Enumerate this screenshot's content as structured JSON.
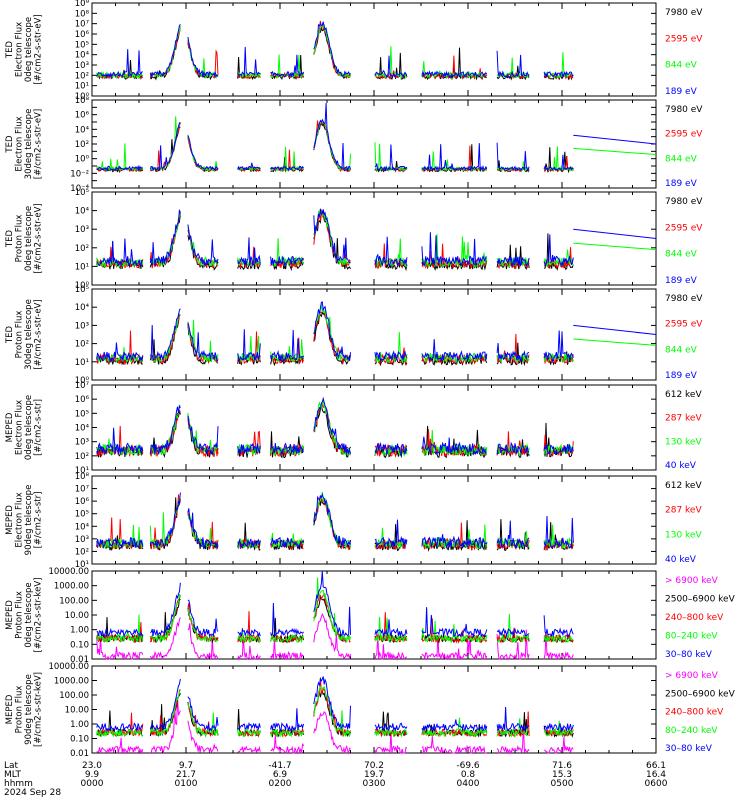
{
  "colors": {
    "black": "#000000",
    "blue": "#0000ff",
    "red": "#ff0000",
    "green": "#00ff00",
    "magenta": "#ff00ff",
    "axis": "#000000",
    "background": "#ffffff"
  },
  "footer": {
    "row_labels": [
      "Lat",
      "MLT",
      "hhmm"
    ],
    "date": "2024 Sep 28",
    "ticks": [
      {
        "lat": "23.0",
        "mlt": "9.9",
        "hhmm": "0000"
      },
      {
        "lat": "9.7",
        "mlt": "21.7",
        "hhmm": "0100"
      },
      {
        "lat": "-41.7",
        "mlt": "6.9",
        "hhmm": "0200"
      },
      {
        "lat": "70.2",
        "mlt": "19.7",
        "hhmm": "0300"
      },
      {
        "lat": "-69.6",
        "mlt": "0.8",
        "hhmm": "0400"
      },
      {
        "lat": "71.6",
        "mlt": "15.3",
        "hhmm": "0500"
      },
      {
        "lat": "66.1",
        "mlt": "16.4",
        "hhmm": "0600"
      }
    ]
  },
  "chart_data": [
    {
      "type": "line",
      "ylabel_lines": [
        "TED",
        "Electron Flux",
        "0deg telescope",
        "[#/cm2-s-str-eV]"
      ],
      "yscale": "log",
      "ylim_exp": [
        0,
        9
      ],
      "ytick_labels": [
        "10⁰",
        "10¹",
        "10²",
        "10³",
        "10⁴",
        "10⁵",
        "10⁶",
        "10⁷",
        "10⁸",
        "10⁹"
      ],
      "ytick_label_exps": [
        1,
        3,
        5,
        7,
        9
      ],
      "legend": [
        {
          "label": "7980 eV",
          "color": "black"
        },
        {
          "label": "2595 eV",
          "color": "red"
        },
        {
          "label": "844 eV",
          "color": "green"
        },
        {
          "label": "189 eV",
          "color": "blue"
        }
      ]
    },
    {
      "type": "line",
      "ylabel_lines": [
        "TED",
        "Electron Flux",
        "30deg telescope",
        "[#/cm2-s-str-eV]"
      ],
      "yscale": "log",
      "ylim_exp": [
        -4,
        8
      ],
      "ytick_labels": [
        "10⁻⁴",
        "10⁻²",
        "10⁰",
        "10²",
        "10⁴",
        "10⁶",
        "10⁸"
      ],
      "ytick_label_exps": [
        -4,
        -2,
        0,
        2,
        4,
        6,
        8
      ],
      "legend": [
        {
          "label": "7980 eV",
          "color": "black"
        },
        {
          "label": "2595 eV",
          "color": "red"
        },
        {
          "label": "844 eV",
          "color": "green"
        },
        {
          "label": "189 eV",
          "color": "blue"
        }
      ]
    },
    {
      "type": "line",
      "ylabel_lines": [
        "TED",
        "Proton Flux",
        "0deg telescope",
        "[#/cm2-s-str-eV]"
      ],
      "yscale": "log",
      "ylim_exp": [
        0,
        5
      ],
      "ytick_labels": [
        "10⁰",
        "10¹",
        "10²",
        "10³",
        "10⁴",
        "10⁵"
      ],
      "ytick_label_exps": [
        0,
        1,
        2,
        3,
        4,
        5
      ],
      "legend": [
        {
          "label": "7980 eV",
          "color": "black"
        },
        {
          "label": "2595 eV",
          "color": "red"
        },
        {
          "label": "844 eV",
          "color": "green"
        },
        {
          "label": "189 eV",
          "color": "blue"
        }
      ]
    },
    {
      "type": "line",
      "ylabel_lines": [
        "TED",
        "Proton Flux",
        "30deg telescope",
        "[#/cm2-s-str-eV]"
      ],
      "yscale": "log",
      "ylim_exp": [
        0,
        5
      ],
      "ytick_labels": [
        "10⁰",
        "10¹",
        "10²",
        "10³",
        "10⁴",
        "10⁵"
      ],
      "ytick_label_exps": [
        0,
        1,
        2,
        3,
        4,
        5
      ],
      "legend": [
        {
          "label": "7980 eV",
          "color": "black"
        },
        {
          "label": "2595 eV",
          "color": "red"
        },
        {
          "label": "844 eV",
          "color": "green"
        },
        {
          "label": "189 eV",
          "color": "blue"
        }
      ]
    },
    {
      "type": "line",
      "ylabel_lines": [
        "MEPED",
        "Electron Flux",
        "0deg telescope",
        "[#/cm2-s-str]"
      ],
      "yscale": "log",
      "ylim_exp": [
        1,
        7
      ],
      "ytick_labels": [
        "10¹",
        "10²",
        "10³",
        "10⁴",
        "10⁵",
        "10⁶",
        "10⁷"
      ],
      "ytick_label_exps": [
        2,
        4,
        6
      ],
      "legend": [
        {
          "label": "612 keV",
          "color": "black"
        },
        {
          "label": "287 keV",
          "color": "red"
        },
        {
          "label": "130 keV",
          "color": "green"
        },
        {
          "label": "40 keV",
          "color": "blue"
        }
      ]
    },
    {
      "type": "line",
      "ylabel_lines": [
        "MEPED",
        "Electron Flux",
        "90deg telescope",
        "[#/cm2-s-str]"
      ],
      "yscale": "log",
      "ylim_exp": [
        1,
        8
      ],
      "ytick_labels": [
        "10¹",
        "10²",
        "10³",
        "10⁴",
        "10⁵",
        "10⁶",
        "10⁷",
        "10⁸"
      ],
      "ytick_label_exps": [
        1,
        2,
        4,
        6,
        8
      ],
      "legend": [
        {
          "label": "612 keV",
          "color": "black"
        },
        {
          "label": "287 keV",
          "color": "red"
        },
        {
          "label": "130 keV",
          "color": "green"
        },
        {
          "label": "40 keV",
          "color": "blue"
        }
      ]
    },
    {
      "type": "line",
      "ylabel_lines": [
        "MEPED",
        "Proton Flux",
        "0deg telescope",
        "[#/cm2-s-str-keV]"
      ],
      "yscale": "log",
      "ylim_exp": [
        -2,
        4
      ],
      "ytick_labels": [
        "0.01",
        "0.10",
        "1.00",
        "10.00",
        "100.00",
        "1000.00",
        "10000.00"
      ],
      "ytick_label_exps": [
        -2,
        -1,
        0,
        1,
        2,
        3,
        4
      ],
      "legend": [
        {
          "label": "> 6900 keV",
          "color": "magenta"
        },
        {
          "label": "2500–6900 keV",
          "color": "black"
        },
        {
          "label": "240–800 keV",
          "color": "red"
        },
        {
          "label": "80–240 keV",
          "color": "green"
        },
        {
          "label": "30–80 keV",
          "color": "blue"
        }
      ]
    },
    {
      "type": "line",
      "ylabel_lines": [
        "MEPED",
        "Proton Flux",
        "90deg telescope",
        "[#/cm2-s-str-keV]"
      ],
      "yscale": "log",
      "ylim_exp": [
        -2,
        4
      ],
      "ytick_labels": [
        "0.01",
        "0.10",
        "1.00",
        "10.00",
        "100.00",
        "1000.00",
        "10000.00"
      ],
      "ytick_label_exps": [
        -2,
        -1,
        0,
        1,
        2,
        3,
        4
      ],
      "legend": [
        {
          "label": "> 6900 keV",
          "color": "magenta"
        },
        {
          "label": "2500–6900 keV",
          "color": "black"
        },
        {
          "label": "240–800 keV",
          "color": "red"
        },
        {
          "label": "80–240 keV",
          "color": "green"
        },
        {
          "label": "30–80 keV",
          "color": "blue"
        }
      ]
    }
  ]
}
